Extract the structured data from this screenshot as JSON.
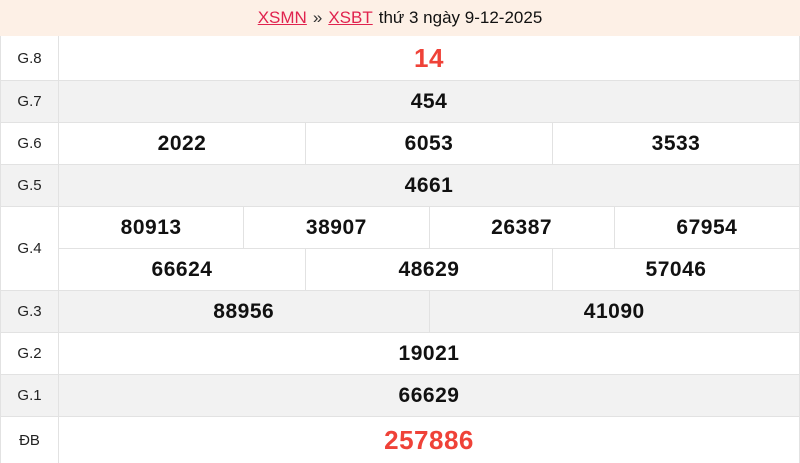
{
  "header": {
    "background": "#fdf0e6",
    "links": [
      {
        "label": "XSMN"
      },
      {
        "label": "XSBT"
      }
    ],
    "separator": "»",
    "date_text": "thứ 3 ngày 9-12-2025"
  },
  "colors": {
    "highlight_red": "#ef4238",
    "link_red": "#e0234e",
    "row_alt_bg": "#f2f2f2",
    "row_bg": "#ffffff",
    "border": "#e2e2e2",
    "number_color": "#111111",
    "label_color": "#222222"
  },
  "table": {
    "rows": [
      {
        "key": "g8",
        "label": "G.8",
        "highlight": true,
        "lines": [
          [
            "14"
          ]
        ]
      },
      {
        "key": "g7",
        "label": "G.7",
        "highlight": false,
        "lines": [
          [
            "454"
          ]
        ]
      },
      {
        "key": "g6",
        "label": "G.6",
        "highlight": false,
        "lines": [
          [
            "2022",
            "6053",
            "3533"
          ]
        ]
      },
      {
        "key": "g5",
        "label": "G.5",
        "highlight": false,
        "lines": [
          [
            "4661"
          ]
        ]
      },
      {
        "key": "g4",
        "label": "G.4",
        "highlight": false,
        "lines": [
          [
            "80913",
            "38907",
            "26387",
            "67954"
          ],
          [
            "66624",
            "48629",
            "57046"
          ]
        ]
      },
      {
        "key": "g3",
        "label": "G.3",
        "highlight": false,
        "lines": [
          [
            "88956",
            "41090"
          ]
        ]
      },
      {
        "key": "g2",
        "label": "G.2",
        "highlight": false,
        "lines": [
          [
            "19021"
          ]
        ]
      },
      {
        "key": "g1",
        "label": "G.1",
        "highlight": false,
        "lines": [
          [
            "66629"
          ]
        ]
      },
      {
        "key": "db",
        "label": "ĐB",
        "highlight": true,
        "lines": [
          [
            "257886"
          ]
        ]
      }
    ]
  }
}
